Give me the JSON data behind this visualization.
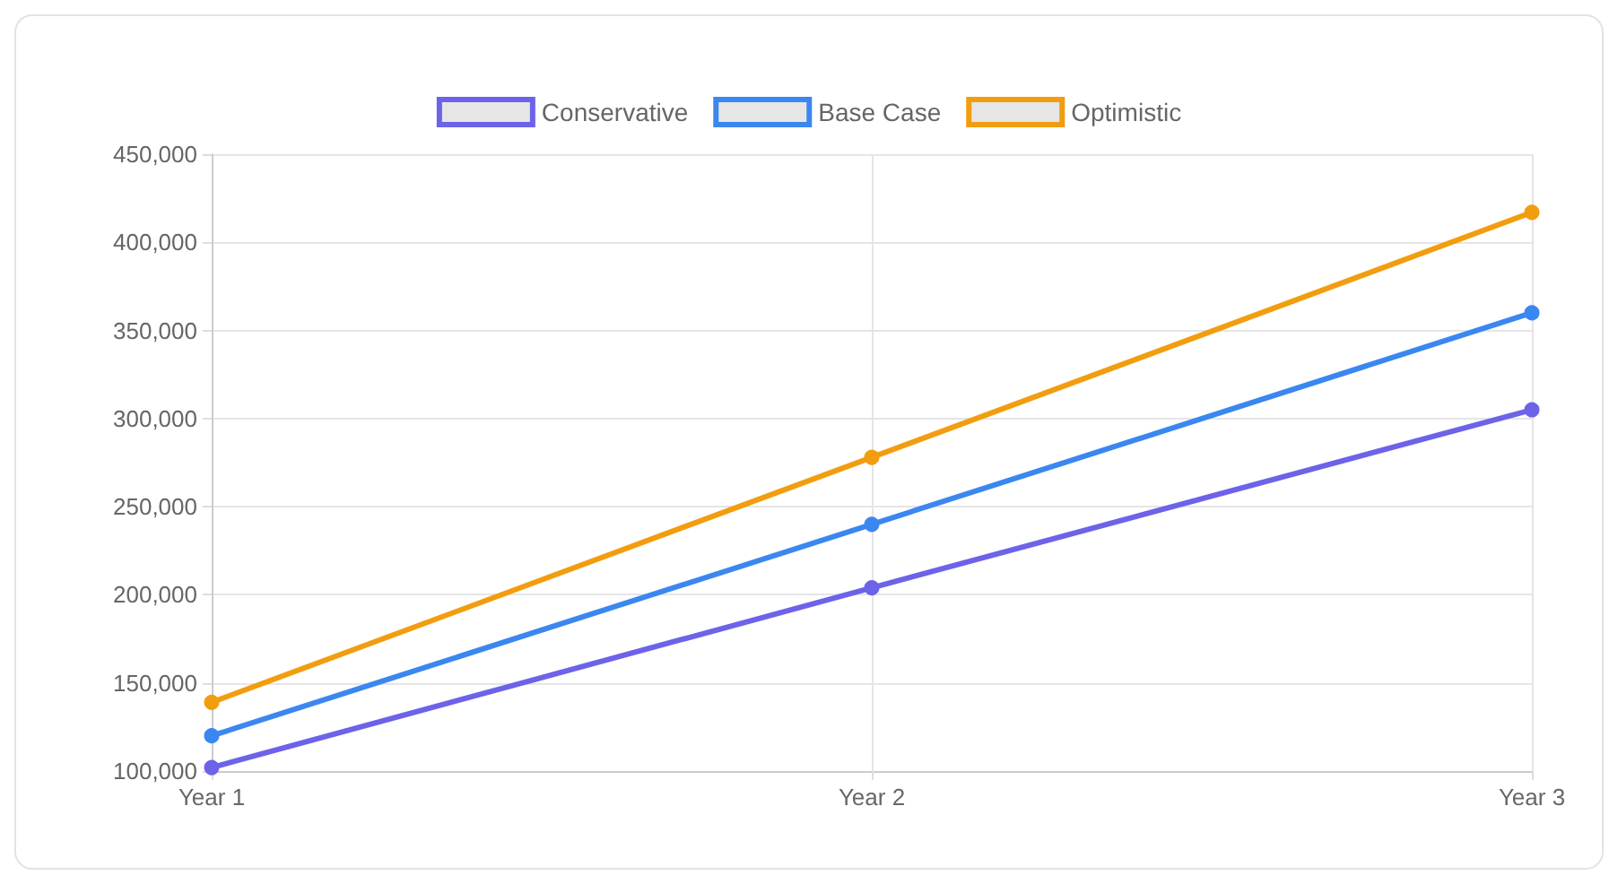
{
  "chart_data": {
    "type": "line",
    "categories": [
      "Year 1",
      "Year 2",
      "Year 3"
    ],
    "series": [
      {
        "name": "Conservative",
        "color": "#6c63e8",
        "values": [
          102000,
          204000,
          305000
        ]
      },
      {
        "name": "Base Case",
        "color": "#3b87f0",
        "values": [
          120000,
          240000,
          360000
        ]
      },
      {
        "name": "Optimistic",
        "color": "#f29d0f",
        "values": [
          139000,
          278000,
          417000
        ]
      }
    ],
    "ylim": [
      100000,
      450000
    ],
    "yticks": [
      {
        "value": 100000,
        "label": "100,000"
      },
      {
        "value": 150000,
        "label": "150,000"
      },
      {
        "value": 200000,
        "label": "200,000"
      },
      {
        "value": 250000,
        "label": "250,000"
      },
      {
        "value": 300000,
        "label": "300,000"
      },
      {
        "value": 350000,
        "label": "350,000"
      },
      {
        "value": 400000,
        "label": "400,000"
      },
      {
        "value": 450000,
        "label": "450,000"
      }
    ],
    "grid": true,
    "legend": "top",
    "marker": "circle",
    "line_style": "solid"
  }
}
